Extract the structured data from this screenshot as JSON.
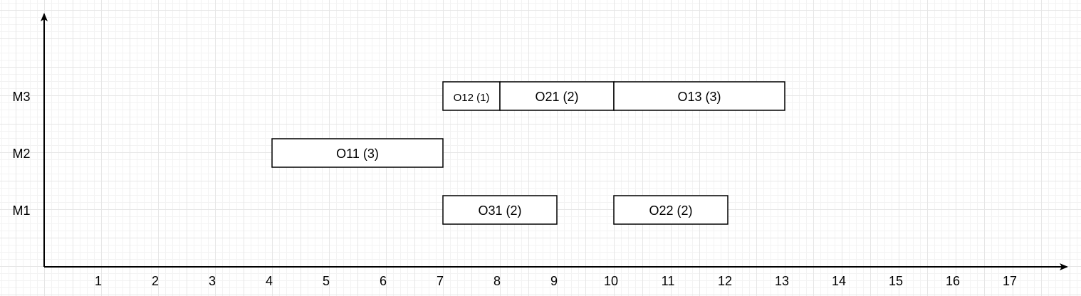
{
  "chart_data": {
    "type": "gantt",
    "title": "",
    "xlabel": "",
    "ylabel": "",
    "x_ticks": [
      1,
      2,
      3,
      4,
      5,
      6,
      7,
      8,
      9,
      10,
      11,
      12,
      13,
      14,
      15,
      16,
      17
    ],
    "xlim": [
      0,
      18
    ],
    "machines": [
      "M1",
      "M2",
      "M3"
    ],
    "grid": true,
    "colors": {
      "bar_fill": "#ffffff",
      "bar_stroke": "#000000",
      "axis": "#000000"
    },
    "operations": [
      {
        "label": "O12 (1)",
        "machine": "M3",
        "start": 7,
        "end": 8
      },
      {
        "label": "O21 (2)",
        "machine": "M3",
        "start": 8,
        "end": 10
      },
      {
        "label": "O13 (3)",
        "machine": "M3",
        "start": 10,
        "end": 13
      },
      {
        "label": "O11 (3)",
        "machine": "M2",
        "start": 4,
        "end": 7
      },
      {
        "label": "O31 (2)",
        "machine": "M1",
        "start": 7,
        "end": 9
      },
      {
        "label": "O22 (2)",
        "machine": "M1",
        "start": 10,
        "end": 12
      }
    ]
  }
}
